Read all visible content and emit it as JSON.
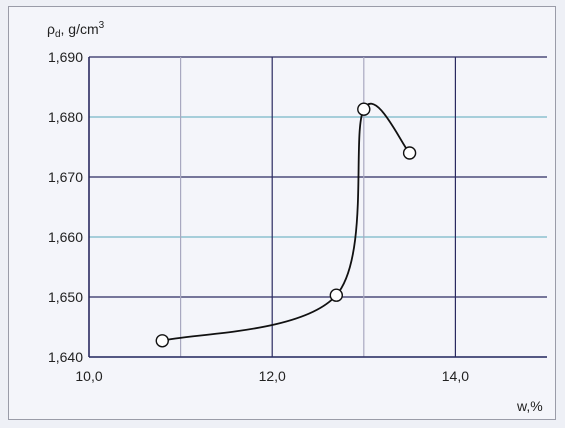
{
  "chart_data": {
    "type": "line",
    "title": "",
    "ylabel": {
      "prefix": "ρ",
      "subscript": "d",
      "unit_prefix": ", g/cm",
      "unit_sup": "3"
    },
    "xlabel": "w,%",
    "xlim": [
      10.0,
      15.0
    ],
    "ylim": [
      1.64,
      1.69
    ],
    "x_ticks": [
      {
        "value": 10.0,
        "label": "10,0"
      },
      {
        "value": 12.0,
        "label": "12,0"
      },
      {
        "value": 14.0,
        "label": "14,0"
      }
    ],
    "y_ticks": [
      {
        "value": 1.64,
        "label": "1,640"
      },
      {
        "value": 1.65,
        "label": "1,650"
      },
      {
        "value": 1.66,
        "label": "1,660"
      },
      {
        "value": 1.67,
        "label": "1,670"
      },
      {
        "value": 1.68,
        "label": "1,680"
      },
      {
        "value": 1.69,
        "label": "1,690"
      }
    ],
    "grid": true,
    "legend": "none",
    "series": [
      {
        "points": [
          {
            "x": 10.8,
            "y": 1.6427
          },
          {
            "x": 12.7,
            "y": 1.6503
          },
          {
            "x": 13.0,
            "y": 1.6813
          },
          {
            "x": 13.5,
            "y": 1.674
          }
        ]
      }
    ],
    "colors": {
      "line": "#111111",
      "grid_dark": "#2a2a60",
      "grid_light": "#78b8c8",
      "grid_mid": "#a8a8c0",
      "marker_fill": "#ffffff"
    }
  }
}
